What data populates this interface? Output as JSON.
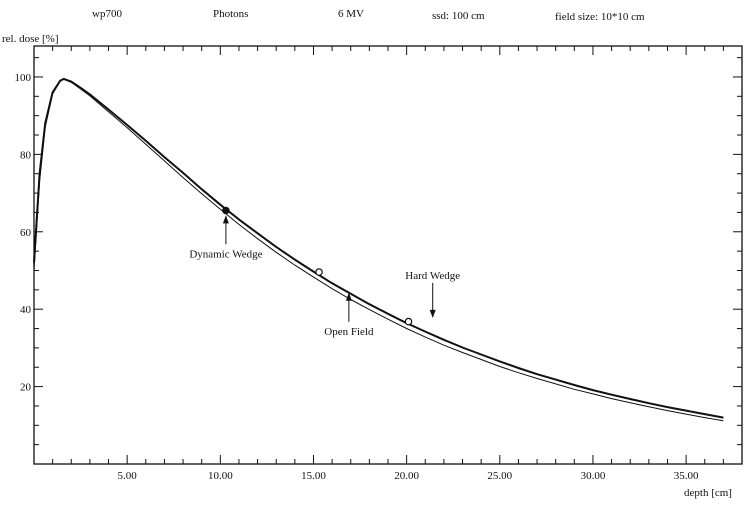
{
  "header": {
    "machine": "wp700",
    "particle": "Photons",
    "energy": "6 MV",
    "ssd": "ssd: 100 cm",
    "field_size": "field size: 10*10 cm"
  },
  "chart_data": {
    "type": "line",
    "title": "",
    "xlabel": "depth [cm]",
    "ylabel": "rel. dose [%]",
    "xlim": [
      0,
      38
    ],
    "ylim": [
      0,
      108
    ],
    "grid": false,
    "x_ticks": [
      {
        "value": 5,
        "label": "5.00"
      },
      {
        "value": 10,
        "label": "10.00"
      },
      {
        "value": 15,
        "label": "15.00"
      },
      {
        "value": 20,
        "label": "20.00"
      },
      {
        "value": 25,
        "label": "25.00"
      },
      {
        "value": 30,
        "label": "30.00"
      },
      {
        "value": 35,
        "label": "35.00"
      }
    ],
    "y_ticks": [
      {
        "value": 20,
        "label": "20"
      },
      {
        "value": 40,
        "label": "40"
      },
      {
        "value": 60,
        "label": "60"
      },
      {
        "value": 80,
        "label": "80"
      },
      {
        "value": 100,
        "label": "100"
      }
    ],
    "series": [
      {
        "name": "Hard Wedge",
        "x": [
          0,
          0.3,
          0.6,
          1.0,
          1.4,
          1.6,
          2.0,
          2.5,
          3,
          4,
          5,
          6,
          7,
          8,
          9,
          10,
          11,
          12,
          13,
          14,
          15,
          16,
          17,
          18,
          19,
          20,
          21,
          22,
          23,
          24,
          25,
          26,
          27,
          28,
          29,
          30,
          31,
          32,
          33,
          34,
          35,
          36,
          37
        ],
        "y": [
          52,
          75,
          88,
          96,
          99,
          99.5,
          98.8,
          97.2,
          95.5,
          91.6,
          87.6,
          83.5,
          79.3,
          75.2,
          71.0,
          67.0,
          63.2,
          59.6,
          56.1,
          52.8,
          49.7,
          46.7,
          44.0,
          41.3,
          38.8,
          36.4,
          34.2,
          32.1,
          30.1,
          28.3,
          26.5,
          24.8,
          23.2,
          21.8,
          20.4,
          19.1,
          17.9,
          16.8,
          15.7,
          14.7,
          13.8,
          12.9,
          12.0
        ]
      },
      {
        "name": "Open Field",
        "x": [
          0,
          0.3,
          0.6,
          1.0,
          1.4,
          1.6,
          2.0,
          2.5,
          3,
          4,
          5,
          6,
          7,
          8,
          9,
          10,
          11,
          12,
          13,
          14,
          15,
          16,
          17,
          18,
          19,
          20,
          21,
          22,
          23,
          24,
          25,
          26,
          27,
          28,
          29,
          30,
          31,
          32,
          33,
          34,
          35,
          36,
          37
        ],
        "y": [
          50,
          73,
          87,
          95.6,
          98.9,
          99.4,
          98.6,
          96.9,
          95.1,
          91.0,
          86.9,
          82.6,
          78.3,
          74.0,
          69.8,
          65.8,
          61.9,
          58.2,
          54.7,
          51.4,
          48.3,
          45.3,
          42.5,
          39.9,
          37.4,
          35.0,
          32.8,
          30.7,
          28.8,
          27.0,
          25.2,
          23.6,
          22.1,
          20.7,
          19.3,
          18.1,
          16.9,
          15.8,
          14.8,
          13.8,
          12.9,
          12.0,
          11.2
        ]
      }
    ],
    "markers": [
      {
        "x": 10.3,
        "y": 65.5,
        "style": "filled"
      },
      {
        "x": 15.3,
        "y": 49.6,
        "style": "open"
      },
      {
        "x": 20.1,
        "y": 36.8,
        "style": "open"
      }
    ],
    "annotations": [
      {
        "text": "Dynamic Wedge",
        "target_x": 10.3,
        "target_y": 64.5,
        "arrow": "up"
      },
      {
        "text": "Open Field",
        "target_x": 16.9,
        "target_y": 44.5,
        "arrow": "up"
      },
      {
        "text": "Hard Wedge",
        "target_x": 21.4,
        "target_y": 37.5,
        "arrow": "down"
      }
    ]
  }
}
